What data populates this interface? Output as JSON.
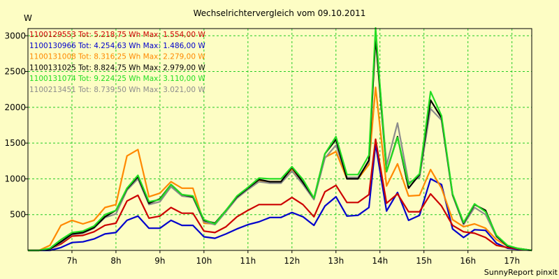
{
  "chart_data": {
    "type": "line",
    "title": "Wechselrichtervergleich vom 09.10.2011",
    "ylabel": "W",
    "xlabel": "",
    "footer": "SunnyReport pinxit",
    "ylim": [
      0,
      3100
    ],
    "xlim": [
      6.0,
      17.45
    ],
    "yticks": [
      500,
      1000,
      1500,
      2000,
      2500,
      3000
    ],
    "xticks": [
      7,
      8,
      9,
      10,
      11,
      12,
      13,
      14,
      15,
      16,
      17
    ],
    "xtick_labels": [
      "7h",
      "8h",
      "9h",
      "10h",
      "11h",
      "12h",
      "13h",
      "14h",
      "15h",
      "16h",
      "17h"
    ],
    "grid": true,
    "x": [
      6.0,
      6.25,
      6.5,
      6.75,
      7.0,
      7.25,
      7.5,
      7.75,
      8.0,
      8.25,
      8.5,
      8.75,
      9.0,
      9.25,
      9.5,
      9.75,
      10.0,
      10.25,
      10.5,
      10.75,
      11.0,
      11.25,
      11.5,
      11.75,
      12.0,
      12.25,
      12.5,
      12.75,
      13.0,
      13.25,
      13.5,
      13.75,
      13.9,
      14.15,
      14.4,
      14.65,
      14.9,
      15.15,
      15.4,
      15.65,
      15.9,
      16.15,
      16.4,
      16.65,
      16.9,
      17.15,
      17.45
    ],
    "series": [
      {
        "name": "1100129553",
        "legend": "1100129553 Tot: 5.218,75 Wh Max: 1.554,00 W",
        "color": "#cc0000",
        "values": [
          0,
          0,
          20,
          90,
          200,
          210,
          260,
          350,
          380,
          690,
          770,
          450,
          480,
          600,
          520,
          520,
          270,
          250,
          330,
          470,
          560,
          640,
          640,
          640,
          740,
          640,
          470,
          820,
          910,
          670,
          670,
          780,
          1554,
          660,
          790,
          540,
          540,
          790,
          620,
          350,
          260,
          240,
          180,
          70,
          40,
          20,
          0
        ]
      },
      {
        "name": "1100130966",
        "legend": "1100130966 Tot: 4.254,63 Wh Max: 1.486,00 W",
        "color": "#0000cc",
        "values": [
          0,
          0,
          0,
          40,
          110,
          120,
          160,
          230,
          250,
          420,
          480,
          310,
          310,
          420,
          350,
          350,
          190,
          170,
          230,
          300,
          360,
          400,
          460,
          460,
          530,
          470,
          350,
          620,
          750,
          480,
          490,
          600,
          1486,
          550,
          810,
          420,
          490,
          1000,
          920,
          300,
          180,
          290,
          280,
          100,
          30,
          15,
          0
        ]
      },
      {
        "name": "1100131008",
        "legend": "1100131008 Tot: 8.316,25 Wh Max: 2.279,00 W",
        "color": "#ff8800",
        "values": [
          0,
          0,
          70,
          350,
          420,
          370,
          420,
          600,
          640,
          1320,
          1410,
          750,
          800,
          960,
          870,
          870,
          380,
          370,
          560,
          750,
          850,
          970,
          960,
          960,
          1130,
          940,
          720,
          1300,
          1380,
          1000,
          1000,
          1200,
          2279,
          900,
          1210,
          760,
          770,
          1130,
          870,
          430,
          330,
          370,
          310,
          150,
          60,
          25,
          0
        ]
      },
      {
        "name": "1100131025",
        "legend": "1100131025 Tot: 8.824,75 Wh Max: 2.979,00 W",
        "color": "#000000",
        "values": [
          0,
          0,
          20,
          120,
          230,
          250,
          320,
          470,
          560,
          860,
          1030,
          660,
          720,
          920,
          780,
          750,
          420,
          380,
          560,
          750,
          870,
          990,
          960,
          960,
          1160,
          950,
          730,
          1350,
          1550,
          1000,
          1000,
          1260,
          2979,
          1100,
          1590,
          870,
          1060,
          2100,
          1850,
          780,
          380,
          640,
          560,
          200,
          60,
          25,
          0
        ]
      },
      {
        "name": "1100131074",
        "legend": "1100131074 Tot: 9.224,25 Wh Max: 3.110,00 W",
        "color": "#22dd22",
        "values": [
          0,
          0,
          30,
          150,
          250,
          270,
          340,
          500,
          560,
          870,
          1050,
          680,
          710,
          920,
          780,
          760,
          430,
          370,
          560,
          760,
          880,
          1010,
          1000,
          1000,
          1170,
          990,
          730,
          1350,
          1590,
          1060,
          1060,
          1330,
          3110,
          1100,
          1580,
          920,
          1070,
          2220,
          1880,
          790,
          390,
          650,
          540,
          210,
          70,
          25,
          0
        ]
      },
      {
        "name": "1100213451",
        "legend": "1100213451 Tot: 8.739,50 Wh Max: 3.021,00 W",
        "color": "#8c8c8c",
        "values": [
          0,
          0,
          15,
          110,
          220,
          240,
          310,
          460,
          510,
          840,
          1000,
          640,
          680,
          890,
          760,
          740,
          400,
          360,
          540,
          730,
          850,
          960,
          940,
          940,
          1110,
          920,
          710,
          1290,
          1470,
          1020,
          1020,
          1240,
          3021,
          1190,
          1780,
          950,
          1020,
          1980,
          1820,
          770,
          360,
          600,
          500,
          190,
          60,
          25,
          0
        ]
      }
    ]
  }
}
